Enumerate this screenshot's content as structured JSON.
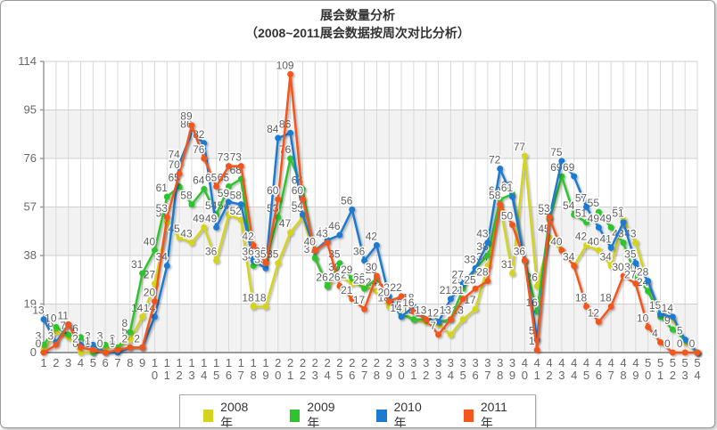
{
  "window": {
    "border_color": "#9b9b9b"
  },
  "chart_data": {
    "type": "line",
    "title": "展会数量分析",
    "subtitle": "（2008~2011展会数据按周次对比分析）",
    "xlabel": "",
    "ylabel": "",
    "ylim": [
      0,
      114
    ],
    "yticks": [
      0,
      19,
      38,
      57,
      76,
      95,
      114
    ],
    "x_tick_start": 1,
    "x_tick_end": 54,
    "grid": "vertical weekly gridlines with alternating horizontal gray bands",
    "legend_position": "bottom-center",
    "point_labels": "every point labeled with its value",
    "label_color": "#5f5f5f",
    "axis_color": "#999999",
    "band_color": "#f2f2f2",
    "gridline_color": "#d9d9d9",
    "tick_text_color": "#666666",
    "series": [
      {
        "name": "2008年",
        "color": "#d4d41f",
        "values": [
          1,
          8,
          6,
          0,
          0,
          2,
          2,
          5,
          14,
          27,
          51,
          45,
          43,
          49,
          36,
          54,
          52,
          18,
          18,
          35,
          47,
          53,
          37,
          26,
          30,
          27,
          26,
          24,
          18,
          16,
          13,
          12,
          11,
          7,
          13,
          17,
          34,
          58,
          31,
          77,
          26,
          45,
          40,
          34,
          42,
          40,
          34,
          52,
          43,
          27,
          15,
          13,
          4,
          0
        ]
      },
      {
        "name": "2009年",
        "color": "#2fc42f",
        "values": [
          3,
          10,
          7,
          6,
          0,
          3,
          2,
          8,
          31,
          40,
          61,
          65,
          58,
          64,
          54,
          65,
          68,
          34,
          36,
          53,
          76,
          64,
          37,
          26,
          35,
          29,
          25,
          29,
          20,
          15,
          13,
          13,
          12,
          13,
          25,
          33,
          38,
          60,
          62,
          36,
          16,
          52,
          69,
          54,
          51,
          55,
          49,
          43,
          30,
          24,
          14,
          9,
          5,
          0
        ]
      },
      {
        "name": "2010年",
        "color": "#1b7ad1",
        "values": [
          13,
          4,
          11,
          3,
          3,
          0,
          0,
          2,
          2,
          14,
          34,
          74,
          86,
          82,
          49,
          59,
          58,
          36,
          33,
          84,
          86,
          54,
          40,
          44,
          46,
          56,
          36,
          42,
          22,
          14,
          18,
          13,
          12,
          21,
          27,
          33,
          43,
          72,
          61,
          36,
          5,
          53,
          75,
          69,
          57,
          49,
          41,
          51,
          35,
          28,
          15,
          14,
          5,
          0
        ]
      },
      {
        "name": "2011年",
        "color": "#f3571e",
        "values": [
          0,
          3,
          11,
          2,
          1,
          0,
          1,
          2,
          2,
          20,
          53,
          70,
          89,
          76,
          65,
          73,
          73,
          42,
          35,
          60,
          109,
          60,
          40,
          43,
          26,
          21,
          17,
          30,
          20,
          22,
          16,
          13,
          7,
          13,
          21,
          25,
          28,
          58,
          50,
          36,
          1,
          53,
          40,
          34,
          18,
          12,
          18,
          30,
          27,
          10,
          4,
          0,
          0,
          0
        ]
      }
    ]
  }
}
